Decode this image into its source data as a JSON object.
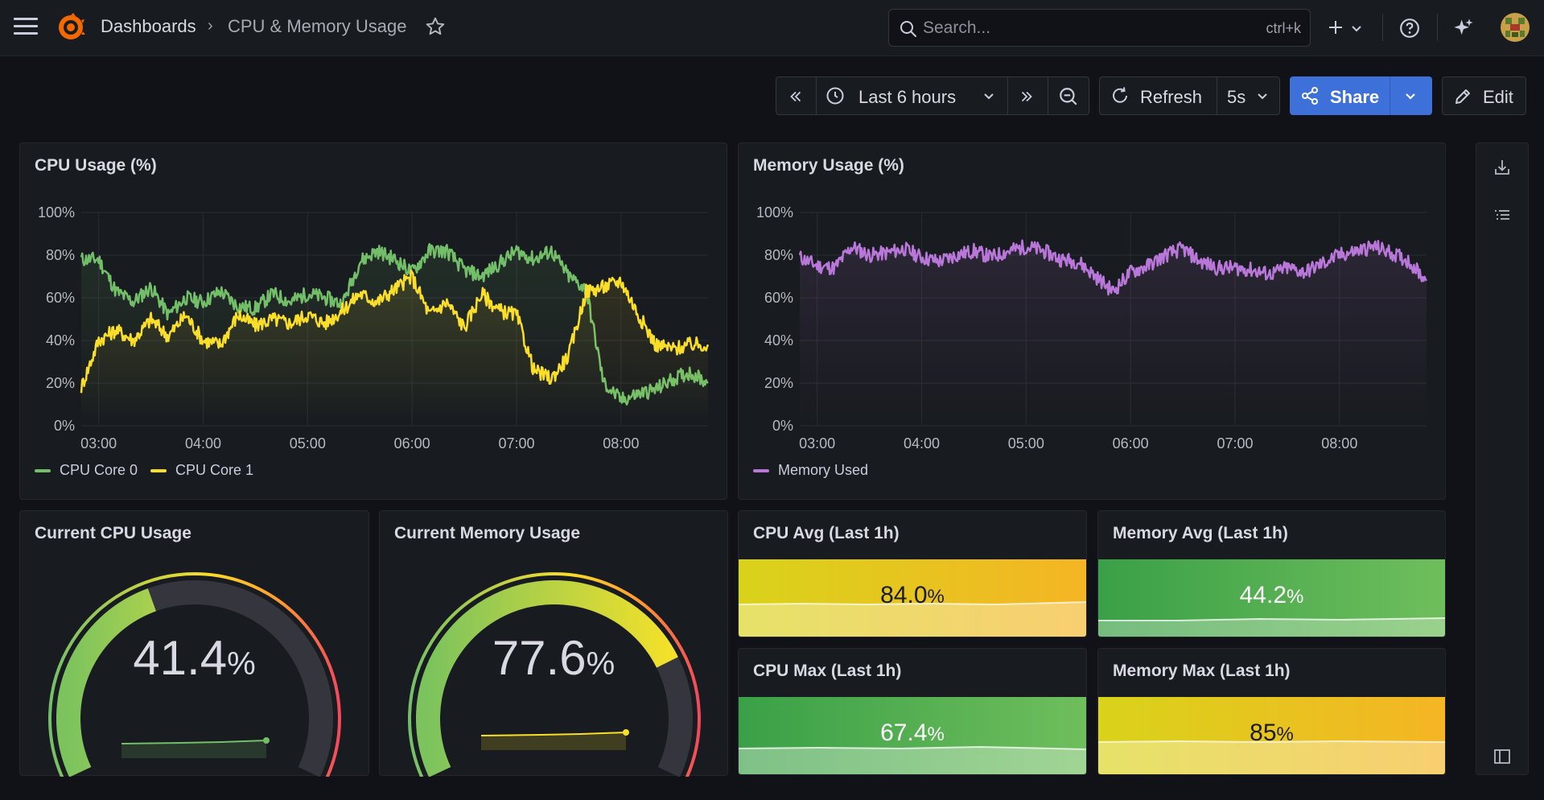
{
  "nav": {
    "breadcrumb_root": "Dashboards",
    "breadcrumb_sep": "›",
    "breadcrumb_current": "CPU & Memory Usage",
    "search_placeholder": "Search...",
    "search_shortcut": "ctrl+k"
  },
  "toolbar": {
    "time_range": "Last 6 hours",
    "refresh_label": "Refresh",
    "refresh_interval": "5s",
    "share_label": "Share",
    "edit_label": "Edit"
  },
  "colors": {
    "cpu_core_0": "#73bf69",
    "cpu_core_1": "#fade2a",
    "memory_used": "#b877d9",
    "share_button": "#3d71d9"
  },
  "icons": [
    "menu-icon",
    "grafana-logo",
    "star-icon",
    "search-icon",
    "plus-icon",
    "help-icon",
    "sparkle-icon",
    "avatar",
    "chevron-double-left-icon",
    "clock-icon",
    "chevron-down-icon",
    "chevron-double-right-icon",
    "zoom-out-icon",
    "refresh-icon",
    "share-icon",
    "pencil-icon",
    "download-icon",
    "list-icon",
    "sidebar-toggle-icon"
  ],
  "panels": {
    "cpu_usage": {
      "title": "CPU Usage (%)",
      "legend": [
        "CPU Core 0",
        "CPU Core 1"
      ]
    },
    "memory_usage": {
      "title": "Memory Usage (%)",
      "legend": [
        "Memory Used"
      ]
    },
    "current_cpu": {
      "title": "Current CPU Usage",
      "value": "41.4",
      "unit": "%",
      "percent": 41.4
    },
    "current_memory": {
      "title": "Current Memory Usage",
      "value": "77.6",
      "unit": "%",
      "percent": 77.6
    },
    "cpu_avg": {
      "title": "CPU Avg (Last 1h)",
      "value": "84.0",
      "unit": "%"
    },
    "memory_avg": {
      "title": "Memory Avg (Last 1h)",
      "value": "44.2",
      "unit": "%"
    },
    "cpu_max": {
      "title": "CPU Max (Last 1h)",
      "value": "67.4",
      "unit": "%"
    },
    "memory_max": {
      "title": "Memory Max (Last 1h)",
      "value": "85",
      "unit": "%"
    }
  },
  "chart_data": [
    {
      "type": "line",
      "title": "CPU Usage (%)",
      "x": [
        "02:50",
        "03:00",
        "03:10",
        "03:20",
        "03:30",
        "03:40",
        "03:50",
        "04:00",
        "04:10",
        "04:20",
        "04:30",
        "04:40",
        "04:50",
        "05:00",
        "05:10",
        "05:20",
        "05:30",
        "05:40",
        "05:50",
        "06:00",
        "06:10",
        "06:20",
        "06:30",
        "06:40",
        "06:50",
        "07:00",
        "07:10",
        "07:20",
        "07:30",
        "07:40",
        "07:50",
        "08:00",
        "08:10",
        "08:20",
        "08:30",
        "08:40",
        "08:50"
      ],
      "series": [
        {
          "name": "CPU Core 0",
          "values": [
            78,
            78,
            63,
            58,
            65,
            52,
            60,
            58,
            63,
            56,
            55,
            62,
            58,
            62,
            60,
            57,
            77,
            82,
            78,
            72,
            82,
            82,
            73,
            70,
            76,
            82,
            78,
            82,
            70,
            64,
            20,
            12,
            15,
            17,
            22,
            25,
            20
          ]
        },
        {
          "name": "CPU Core 1",
          "values": [
            18,
            40,
            45,
            40,
            50,
            42,
            52,
            40,
            38,
            52,
            47,
            50,
            48,
            52,
            48,
            54,
            62,
            58,
            64,
            70,
            52,
            58,
            46,
            62,
            54,
            52,
            26,
            22,
            33,
            63,
            65,
            68,
            52,
            38,
            36,
            38,
            38
          ]
        }
      ],
      "ylim": [
        0,
        100
      ],
      "yticks": [
        "0%",
        "20%",
        "40%",
        "60%",
        "80%",
        "100%"
      ],
      "xticks": [
        "03:00",
        "04:00",
        "05:00",
        "06:00",
        "07:00",
        "08:00"
      ],
      "legend": "bottom-left"
    },
    {
      "type": "line",
      "title": "Memory Usage (%)",
      "x": [
        "02:50",
        "03:00",
        "03:10",
        "03:20",
        "03:30",
        "03:40",
        "03:50",
        "04:00",
        "04:10",
        "04:20",
        "04:30",
        "04:40",
        "04:50",
        "05:00",
        "05:10",
        "05:20",
        "05:30",
        "05:40",
        "05:50",
        "06:00",
        "06:10",
        "06:20",
        "06:30",
        "06:40",
        "06:50",
        "07:00",
        "07:10",
        "07:20",
        "07:30",
        "07:40",
        "07:50",
        "08:00",
        "08:10",
        "08:20",
        "08:30",
        "08:40",
        "08:50"
      ],
      "series": [
        {
          "name": "Memory Used",
          "values": [
            79,
            75,
            74,
            84,
            80,
            81,
            83,
            79,
            77,
            80,
            82,
            79,
            82,
            84,
            82,
            78,
            77,
            70,
            63,
            72,
            75,
            80,
            83,
            77,
            74,
            74,
            73,
            71,
            74,
            72,
            76,
            80,
            82,
            84,
            81,
            77,
            68
          ]
        }
      ],
      "ylim": [
        0,
        100
      ],
      "yticks": [
        "0%",
        "20%",
        "40%",
        "60%",
        "80%",
        "100%"
      ],
      "xticks": [
        "03:00",
        "04:00",
        "05:00",
        "06:00",
        "07:00",
        "08:00"
      ],
      "legend": "bottom-left"
    }
  ]
}
